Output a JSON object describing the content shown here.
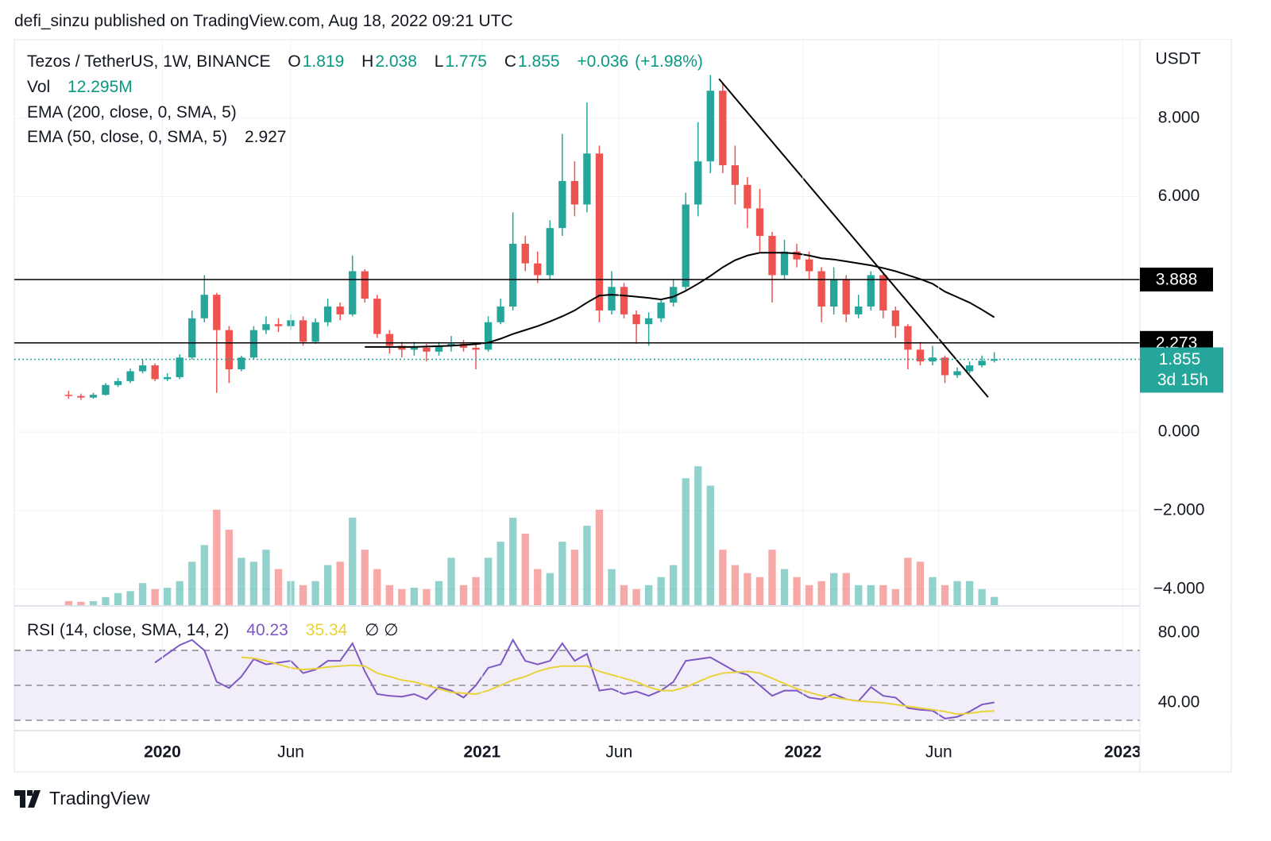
{
  "header": {
    "publisher": "defi_sinzu published on TradingView.com, Aug 18, 2022 09:21 UTC"
  },
  "chart_data": [
    {
      "type": "candlestick",
      "title": "Tezos / TetherUS, 1W, BINANCE",
      "ohlc_letters": [
        "O",
        "H",
        "L",
        "C"
      ],
      "change_label": "+0.036",
      "change_pct_label": "(+1.98%)",
      "axis_unit": "USDT",
      "up_color": "#26a69a",
      "down_color": "#ef5350",
      "open": [
        0.95,
        0.92,
        0.88,
        0.95,
        1.2,
        1.3,
        1.55,
        1.7,
        1.35,
        1.4,
        1.9,
        2.9,
        3.5,
        2.6,
        1.6,
        1.9,
        2.6,
        2.75,
        2.7,
        2.85,
        2.3,
        2.8,
        3.2,
        3.0,
        4.1,
        3.4,
        2.5,
        2.2,
        2.1,
        2.15,
        2.05,
        2.2,
        2.25,
        2.15,
        2.1,
        2.8,
        3.2,
        4.8,
        4.3,
        4.0,
        5.2,
        6.4,
        5.8,
        7.1,
        3.1,
        3.7,
        3.0,
        2.75,
        2.9,
        3.3,
        3.7,
        5.8,
        6.9,
        8.7,
        6.8,
        6.3,
        5.7,
        5.0,
        4.0,
        4.6,
        4.4,
        4.1,
        3.2,
        3.9,
        3.0,
        3.2,
        4.0,
        3.1,
        2.7,
        2.1,
        1.8,
        1.9,
        1.45,
        1.55,
        1.7,
        1.819
      ],
      "high": [
        1.05,
        0.98,
        1.0,
        1.25,
        1.38,
        1.62,
        1.85,
        1.75,
        1.5,
        1.98,
        3.1,
        4.0,
        3.55,
        2.7,
        1.95,
        2.7,
        2.95,
        2.9,
        3.0,
        2.95,
        2.9,
        3.4,
        3.3,
        4.5,
        4.15,
        3.5,
        2.6,
        2.3,
        2.3,
        2.25,
        2.3,
        2.45,
        2.35,
        2.25,
        2.95,
        3.4,
        5.6,
        5.0,
        4.6,
        5.4,
        7.6,
        6.9,
        8.4,
        7.3,
        4.1,
        3.8,
        3.1,
        3.05,
        3.4,
        3.9,
        6.1,
        7.9,
        9.1,
        8.9,
        7.3,
        6.5,
        6.2,
        5.1,
        4.9,
        4.8,
        4.6,
        4.2,
        4.2,
        4.0,
        3.5,
        4.1,
        4.05,
        3.2,
        2.75,
        2.3,
        2.2,
        1.95,
        1.65,
        1.8,
        1.95,
        2.038
      ],
      "low": [
        0.85,
        0.82,
        0.85,
        0.93,
        1.15,
        1.25,
        1.5,
        1.3,
        1.3,
        1.35,
        1.85,
        2.8,
        1.0,
        1.25,
        1.55,
        1.85,
        2.5,
        2.55,
        2.6,
        2.2,
        2.25,
        2.7,
        2.85,
        2.95,
        3.3,
        2.4,
        2.0,
        1.9,
        1.95,
        1.8,
        1.95,
        2.05,
        2.05,
        1.6,
        2.05,
        2.75,
        3.1,
        4.1,
        3.8,
        3.9,
        5.0,
        5.5,
        5.6,
        2.8,
        3.0,
        2.9,
        2.25,
        2.2,
        2.8,
        3.2,
        3.6,
        5.5,
        6.6,
        6.6,
        5.8,
        5.2,
        4.6,
        3.3,
        3.9,
        4.2,
        3.9,
        2.8,
        3.0,
        2.8,
        2.9,
        3.1,
        2.9,
        2.4,
        1.6,
        1.7,
        1.7,
        1.25,
        1.38,
        1.5,
        1.65,
        1.775
      ],
      "close": [
        0.92,
        0.88,
        0.95,
        1.2,
        1.3,
        1.55,
        1.7,
        1.35,
        1.4,
        1.9,
        2.9,
        3.5,
        2.6,
        1.6,
        1.9,
        2.6,
        2.75,
        2.7,
        2.85,
        2.3,
        2.8,
        3.2,
        3.0,
        4.1,
        3.4,
        2.5,
        2.2,
        2.1,
        2.15,
        2.05,
        2.2,
        2.25,
        2.15,
        2.1,
        2.8,
        3.2,
        4.8,
        4.3,
        4.0,
        5.2,
        6.4,
        5.8,
        7.1,
        3.1,
        3.7,
        3.0,
        2.75,
        2.9,
        3.3,
        3.7,
        5.8,
        6.9,
        8.7,
        6.8,
        6.3,
        5.7,
        5.0,
        4.0,
        4.6,
        4.4,
        4.1,
        3.2,
        3.9,
        3.0,
        3.2,
        4.0,
        3.1,
        2.7,
        2.1,
        1.8,
        1.9,
        1.45,
        1.55,
        1.7,
        1.819,
        1.855
      ],
      "ylim": [
        -4.41,
        10.0
      ],
      "yticks": [
        {
          "value": 8,
          "label": "8.000"
        },
        {
          "value": 6,
          "label": "6.000"
        },
        {
          "value": 0,
          "label": "0.000"
        },
        {
          "value": -2,
          "label": "−2.000"
        },
        {
          "value": -4,
          "label": "−4.000"
        }
      ],
      "xlim": [
        -4.4,
        86.8
      ],
      "xticks": [
        {
          "value": 7.6,
          "label": "2020"
        },
        {
          "value": 18.0,
          "label": "Jun"
        },
        {
          "value": 33.5,
          "label": "2021"
        },
        {
          "value": 44.6,
          "label": "Jun"
        },
        {
          "value": 59.5,
          "label": "2022"
        },
        {
          "value": 70.5,
          "label": "Jun"
        },
        {
          "value": 85.4,
          "label": "2023"
        }
      ],
      "grid": true,
      "volume": {
        "name": "Vol",
        "value_label": "12.295M",
        "ylim": [
          0,
          220
        ],
        "values": [
          6,
          5,
          6,
          12,
          18,
          21,
          33,
          24,
          26,
          36,
          65,
          90,
          143,
          113,
          71,
          65,
          83,
          54,
          36,
          30,
          36,
          60,
          65,
          131,
          83,
          54,
          30,
          24,
          26,
          24,
          36,
          71,
          30,
          42,
          71,
          95,
          131,
          107,
          54,
          48,
          95,
          83,
          119,
          143,
          54,
          30,
          24,
          30,
          42,
          60,
          190,
          208,
          179,
          83,
          60,
          48,
          42,
          83,
          54,
          42,
          30,
          36,
          48,
          48,
          30,
          30,
          30,
          24,
          71,
          65,
          42,
          30,
          36,
          36,
          24,
          12.295
        ]
      },
      "indicators": [
        {
          "name": "EMA (200, close, 0, SMA, 5)"
        },
        {
          "name": "EMA (50, close, 0, SMA, 5)",
          "color": "#000000",
          "values": [
            null,
            null,
            null,
            null,
            null,
            null,
            null,
            null,
            null,
            null,
            null,
            null,
            null,
            null,
            null,
            null,
            null,
            null,
            null,
            null,
            null,
            null,
            null,
            null,
            2.17,
            2.17,
            2.17,
            2.17,
            2.17,
            2.18,
            2.19,
            2.2,
            2.22,
            2.24,
            2.28,
            2.38,
            2.5,
            2.6,
            2.7,
            2.82,
            2.95,
            3.1,
            3.3,
            3.48,
            3.5,
            3.48,
            3.45,
            3.42,
            3.38,
            3.45,
            3.6,
            3.78,
            3.98,
            4.2,
            4.38,
            4.5,
            4.57,
            4.57,
            4.57,
            4.55,
            4.5,
            4.43,
            4.4,
            4.35,
            4.3,
            4.25,
            4.18,
            4.1,
            4.0,
            3.9,
            3.78,
            3.58,
            3.44,
            3.3,
            3.12,
            2.927
          ]
        }
      ],
      "hlines": [
        3.888,
        2.273
      ],
      "countdown": "3d 15h",
      "trendline": {
        "x": [
          52.7,
          74.5
        ],
        "y": [
          9.0,
          0.89
        ]
      }
    },
    {
      "type": "line",
      "title": "RSI (14, close, SMA, 14, 2)",
      "na_label": "∅ ∅",
      "series": [
        {
          "color": "#7e57c2",
          "values": [
            null,
            null,
            null,
            null,
            null,
            null,
            null,
            63,
            68,
            73,
            76,
            70,
            52,
            48.5,
            55,
            65,
            62,
            63,
            64,
            57,
            59,
            64,
            64,
            74,
            58,
            45,
            44,
            43.5,
            45,
            42,
            49,
            47,
            43,
            50,
            60,
            62,
            76,
            64,
            62,
            64,
            74,
            64,
            68,
            47,
            48,
            45,
            46.5,
            44,
            47,
            52,
            64,
            65,
            66,
            62,
            58,
            56,
            50,
            44,
            47,
            47,
            43,
            42,
            45,
            42,
            41,
            49,
            44,
            43,
            37,
            36,
            35.5,
            31,
            32,
            35,
            39,
            40.23
          ]
        },
        {
          "color": "#e8d23a",
          "values": [
            null,
            null,
            null,
            null,
            null,
            null,
            null,
            null,
            null,
            null,
            null,
            null,
            null,
            null,
            66,
            65.5,
            64,
            62,
            60,
            59,
            59.5,
            60.5,
            61,
            61.5,
            61,
            57,
            55,
            53,
            52,
            50,
            48,
            46,
            45.5,
            45,
            47,
            50,
            53,
            55,
            58,
            60,
            61,
            61,
            61,
            58,
            56,
            54,
            52,
            49,
            47,
            47,
            49,
            52,
            55,
            57,
            57.5,
            58,
            57,
            54,
            51,
            48,
            46,
            44,
            43,
            42,
            41,
            40.5,
            40,
            39,
            38,
            37,
            36,
            35,
            33.5,
            34,
            35,
            35.34
          ]
        }
      ],
      "ylim": [
        24.1,
        94.5
      ],
      "yticks": [
        {
          "value": 80,
          "label": "80.00"
        },
        {
          "value": 40,
          "label": "40.00"
        }
      ],
      "levels": [
        70,
        50,
        30
      ]
    }
  ],
  "footer": {
    "brand": "TradingView"
  }
}
